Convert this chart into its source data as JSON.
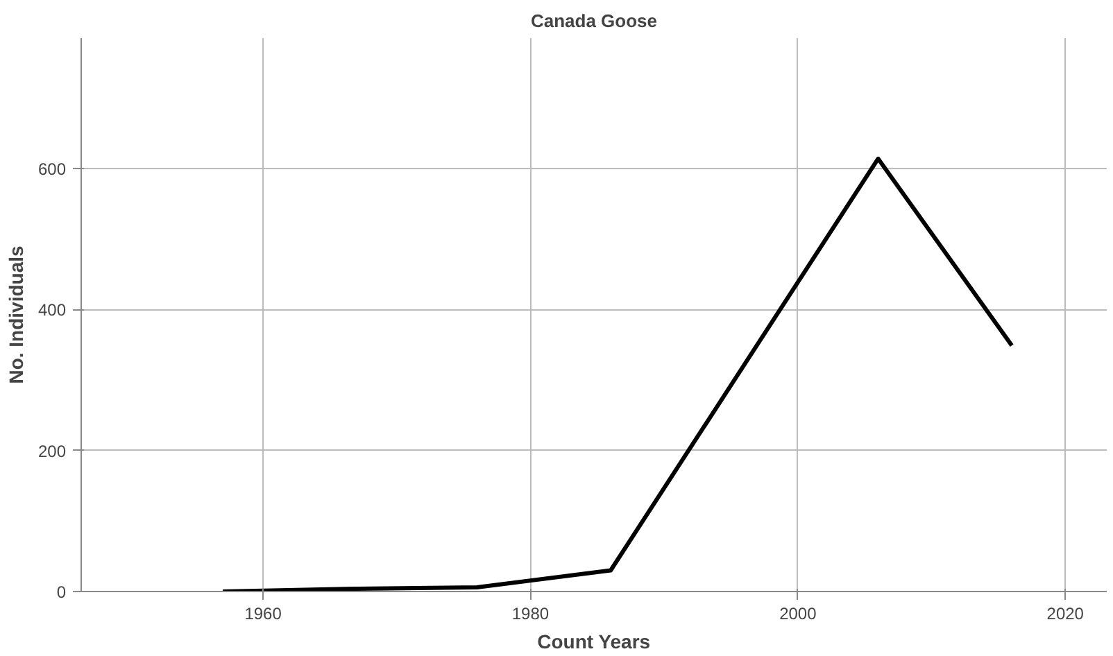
{
  "chart_data": {
    "type": "line",
    "title": "Canada Goose",
    "xlabel": "Count Years",
    "ylabel": "No. Individuals",
    "x": [
      1957,
      1967,
      1976,
      1986,
      2006,
      2016
    ],
    "series": [
      {
        "color": "#000000",
        "values": [
          0,
          4,
          6,
          30,
          614,
          349
        ]
      }
    ],
    "xlim": [
      1946.4,
      2023.1
    ],
    "ylim": [
      0,
      785
    ],
    "xticks": [
      1960,
      1980,
      2000,
      2020
    ],
    "yticks": [
      0,
      200,
      400,
      600
    ],
    "grid": true,
    "marker": "none",
    "line_style": "solid"
  }
}
